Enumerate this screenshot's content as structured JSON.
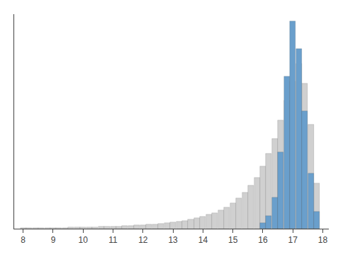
{
  "chart_data": {
    "type": "bar",
    "xlim": [
      7.7,
      18.2
    ],
    "ylim": [
      0,
      310
    ],
    "xticks": [
      8,
      9,
      10,
      11,
      12,
      13,
      14,
      15,
      16,
      17,
      18
    ],
    "tick_labels": "x",
    "grid": false,
    "series": [
      {
        "color": "#d0d0d0",
        "x": [
          8.0,
          8.2,
          8.4,
          8.6,
          8.8,
          9.0,
          9.2,
          9.4,
          9.6,
          9.8,
          10.0,
          10.2,
          10.4,
          10.6,
          10.8,
          11.0,
          11.2,
          11.4,
          11.6,
          11.8,
          12.0,
          12.2,
          12.4,
          12.6,
          12.8,
          13.0,
          13.2,
          13.4,
          13.6,
          13.8,
          14.0,
          14.2,
          14.4,
          14.6,
          14.8,
          15.0,
          15.2,
          15.4,
          15.6,
          15.8,
          16.0,
          16.2,
          16.4,
          16.6,
          16.8,
          17.0,
          17.2,
          17.4,
          17.6,
          17.8
        ],
        "values": [
          1,
          1,
          1,
          1,
          1,
          1,
          1,
          1,
          2,
          2,
          2,
          2,
          2,
          3,
          3,
          3,
          3,
          4,
          4,
          5,
          5,
          6,
          6,
          7,
          8,
          9,
          10,
          11,
          13,
          15,
          17,
          20,
          23,
          27,
          31,
          37,
          44,
          52,
          62,
          74,
          90,
          108,
          130,
          157,
          185,
          213,
          238,
          210,
          150,
          65
        ]
      },
      {
        "color": "#6a9fcc",
        "x": [
          16.0,
          16.2,
          16.4,
          16.6,
          16.8,
          17.0,
          17.2,
          17.4,
          17.6,
          17.8
        ],
        "values": [
          8,
          18,
          45,
          110,
          220,
          300,
          260,
          170,
          80,
          25
        ]
      }
    ]
  }
}
